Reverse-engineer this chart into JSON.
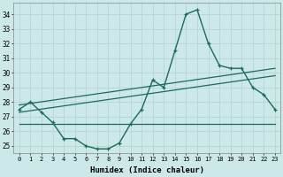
{
  "x": [
    0,
    1,
    2,
    3,
    4,
    5,
    6,
    7,
    8,
    9,
    10,
    11,
    12,
    13,
    14,
    15,
    16,
    17,
    18,
    19,
    20,
    21,
    22,
    23
  ],
  "main_y": [
    27.5,
    28.0,
    27.3,
    26.6,
    25.5,
    25.5,
    25.0,
    24.8,
    24.8,
    25.2,
    26.5,
    27.5,
    29.5,
    29.0,
    31.5,
    34.0,
    34.3,
    32.0,
    30.5,
    30.3,
    30.3,
    29.0,
    28.5,
    27.5
  ],
  "line1_x": [
    0,
    23
  ],
  "line1_y": [
    27.8,
    30.3
  ],
  "line2_x": [
    0,
    23
  ],
  "line2_y": [
    27.3,
    29.8
  ],
  "line3_x": [
    0,
    23
  ],
  "line3_y": [
    26.5,
    26.5
  ],
  "xlim": [
    -0.5,
    23.5
  ],
  "ylim": [
    24.5,
    34.8
  ],
  "yticks": [
    25,
    26,
    27,
    28,
    29,
    30,
    31,
    32,
    33,
    34
  ],
  "xticks": [
    0,
    1,
    2,
    3,
    4,
    5,
    6,
    7,
    8,
    9,
    10,
    11,
    12,
    13,
    14,
    15,
    16,
    17,
    18,
    19,
    20,
    21,
    22,
    23
  ],
  "xtick_labels": [
    "0",
    "1",
    "2",
    "3",
    "4",
    "5",
    "6",
    "7",
    "8",
    "9",
    "10",
    "11",
    "12",
    "13",
    "14",
    "15",
    "16",
    "17",
    "18",
    "19",
    "20",
    "21",
    "22",
    "23"
  ],
  "xlabel": "Humidex (Indice chaleur)",
  "line_color": "#1a6b5a",
  "bg_color": "#cde8e8",
  "grid_color": "#b8d8d8"
}
